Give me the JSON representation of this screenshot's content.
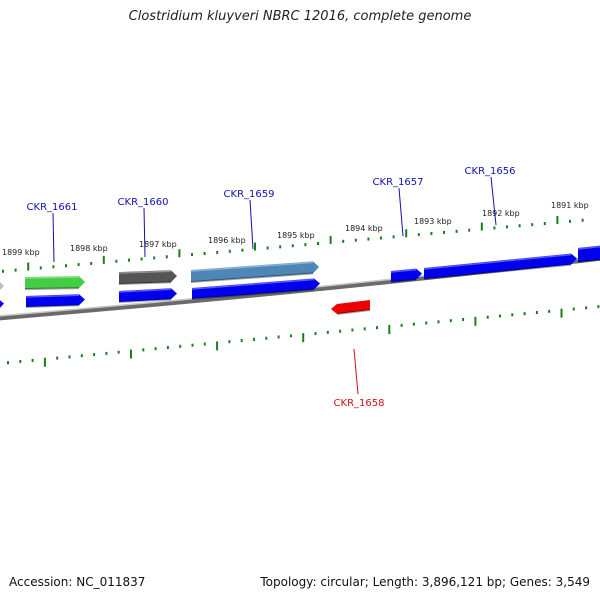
{
  "title": "Clostridium kluyveri NBRC 12016, complete genome",
  "footer": {
    "accession": "Accession: NC_011837",
    "summary": "Topology: circular; Length: 3,896,121 bp; Genes: 3,549"
  },
  "colors": {
    "backbone": "#8a8a8a",
    "tick": "#1a7f1a",
    "gene_forward": "#0000ee",
    "gene_reverse": "#ee0000",
    "gene_green": "#44cc44",
    "gene_dark": "#555555",
    "gene_steel": "#4f86b8",
    "gene_light": "#bdbdbd",
    "label_forward": "#1010b0",
    "label_reverse": "#d01010",
    "kbp_label": "#222222"
  },
  "kbp_labels": [
    "1899 kbp",
    "1898 kbp",
    "1897 kbp",
    "1896 kbp",
    "1895 kbp",
    "1894 kbp",
    "1893 kbp",
    "1892 kbp",
    "1891 kbp"
  ],
  "gene_labels": [
    {
      "id": "CKR_1661",
      "strand": "forward"
    },
    {
      "id": "CKR_1660",
      "strand": "forward"
    },
    {
      "id": "CKR_1659",
      "strand": "forward"
    },
    {
      "id": "CKR_1657",
      "strand": "forward"
    },
    {
      "id": "CKR_1656",
      "strand": "forward"
    },
    {
      "id": "CKR_1658",
      "strand": "reverse"
    }
  ]
}
